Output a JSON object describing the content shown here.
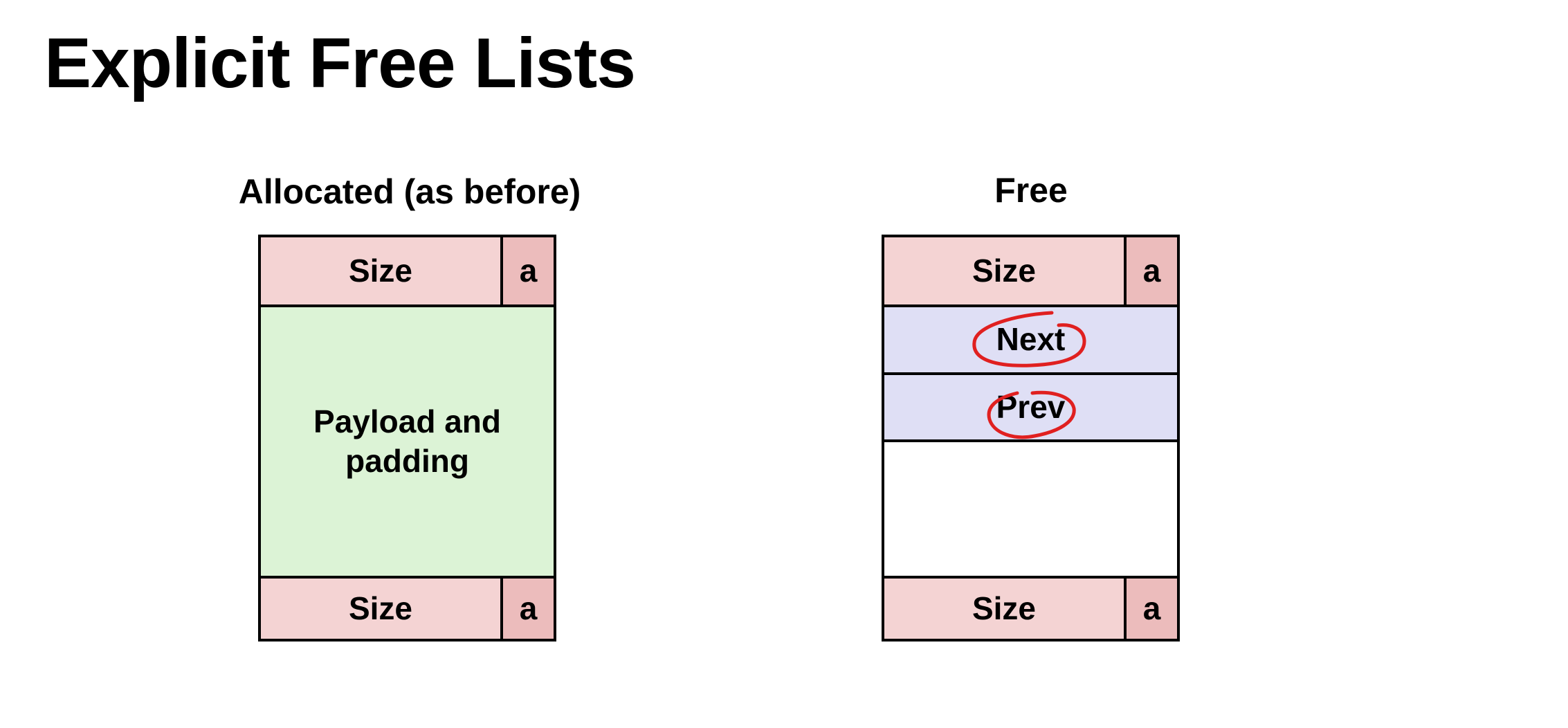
{
  "title": "Explicit Free Lists",
  "allocated": {
    "heading": "Allocated (as before)",
    "header": {
      "size_label": "Size",
      "a_label": "a"
    },
    "payload_line1": "Payload and",
    "payload_line2": "padding",
    "footer": {
      "size_label": "Size",
      "a_label": "a"
    }
  },
  "free": {
    "heading": "Free",
    "header": {
      "size_label": "Size",
      "a_label": "a"
    },
    "next_label": "Next",
    "prev_label": "Prev",
    "footer": {
      "size_label": "Size",
      "a_label": "a"
    }
  },
  "colors": {
    "size_fill": "#f4d3d3",
    "alloc_bit_fill": "#ecbcbc",
    "payload_fill": "#dcf3d6",
    "pointer_fill": "#dfdff5",
    "annotation_ink": "#e02020"
  }
}
